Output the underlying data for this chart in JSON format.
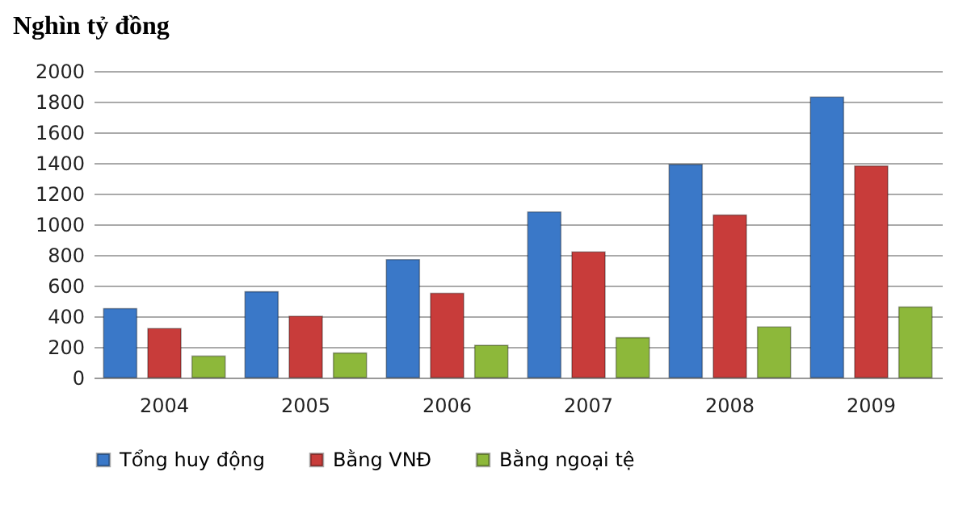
{
  "chart_data": {
    "type": "bar",
    "title": "Nghìn tỷ đồng",
    "categories": [
      "2004",
      "2005",
      "2006",
      "2007",
      "2008",
      "2009"
    ],
    "series": [
      {
        "name": "Tổng huy động",
        "color": "#3a78c8",
        "values": [
          450,
          560,
          770,
          1080,
          1390,
          1830
        ]
      },
      {
        "name": "Bằng VNĐ",
        "color": "#c83c3a",
        "values": [
          320,
          400,
          550,
          820,
          1060,
          1380
        ]
      },
      {
        "name": "Bằng ngoại tệ",
        "color": "#8db83a",
        "values": [
          140,
          160,
          210,
          260,
          330,
          460
        ]
      }
    ],
    "ylim": [
      0,
      2000
    ],
    "yticks": [
      0,
      200,
      400,
      600,
      800,
      1000,
      1200,
      1400,
      1600,
      1800,
      2000
    ],
    "grid": "y",
    "legend": "bottom"
  }
}
